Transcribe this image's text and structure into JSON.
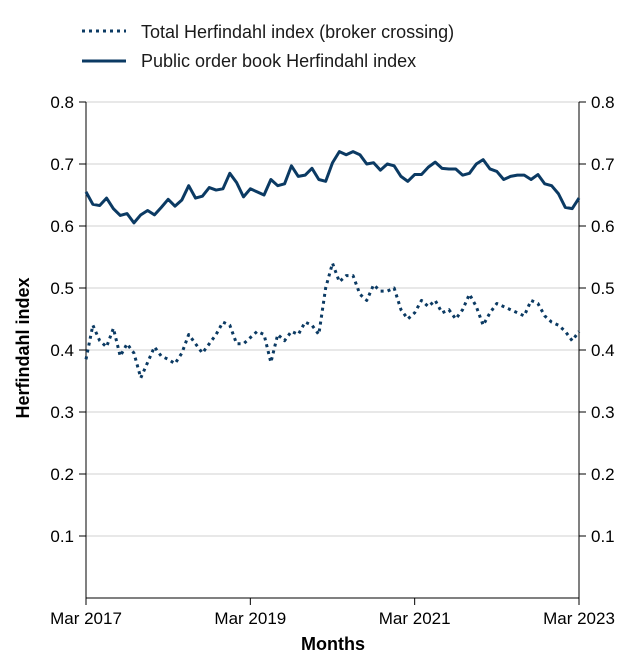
{
  "chart_data": {
    "type": "line",
    "title": "",
    "xlabel": "Months",
    "ylabel": "Herfindahl index",
    "ylim": [
      0,
      0.8
    ],
    "yticks": [
      0.1,
      0.2,
      0.3,
      0.4,
      0.5,
      0.6,
      0.7,
      0.8
    ],
    "ytick_labels": [
      "0.1",
      "0.2",
      "0.3",
      "0.4",
      "0.5",
      "0.6",
      "0.7",
      "0.8"
    ],
    "xticks": [
      "Mar 2017",
      "Mar 2019",
      "Mar 2021",
      "Mar 2023"
    ],
    "xtick_labels": [
      "Mar 2017",
      "Mar 2019",
      "Mar 2021",
      "Mar 2023"
    ],
    "x_range": [
      "Mar 2017",
      "Mar 2023"
    ],
    "grid": "horizontal",
    "legend_position": "top",
    "series": [
      {
        "name": "Total Herfindahl index (broker crossing)",
        "style": "dotted",
        "color": "#0b3a63",
        "x": [
          "2017-03",
          "2017-04",
          "2017-05",
          "2017-06",
          "2017-07",
          "2017-08",
          "2017-09",
          "2017-10",
          "2017-11",
          "2017-12",
          "2018-01",
          "2018-02",
          "2018-03",
          "2018-04",
          "2018-05",
          "2018-06",
          "2018-07",
          "2018-08",
          "2018-09",
          "2018-10",
          "2018-11",
          "2018-12",
          "2019-01",
          "2019-02",
          "2019-03",
          "2019-04",
          "2019-05",
          "2019-06",
          "2019-07",
          "2019-08",
          "2019-09",
          "2019-10",
          "2019-11",
          "2019-12",
          "2020-01",
          "2020-02",
          "2020-03",
          "2020-04",
          "2020-05",
          "2020-06",
          "2020-07",
          "2020-08",
          "2020-09",
          "2020-10",
          "2020-11",
          "2020-12",
          "2021-01",
          "2021-02",
          "2021-03",
          "2021-04",
          "2021-05",
          "2021-06",
          "2021-07",
          "2021-08",
          "2021-09",
          "2021-10",
          "2021-11",
          "2021-12",
          "2022-01",
          "2022-02",
          "2022-03",
          "2022-04",
          "2022-05",
          "2022-06",
          "2022-07",
          "2022-08",
          "2022-09",
          "2022-10",
          "2022-11",
          "2022-12",
          "2023-01",
          "2023-02",
          "2023-03"
        ],
        "values": [
          0.385,
          0.44,
          0.415,
          0.405,
          0.435,
          0.39,
          0.41,
          0.395,
          0.355,
          0.38,
          0.405,
          0.39,
          0.385,
          0.378,
          0.395,
          0.425,
          0.41,
          0.395,
          0.41,
          0.425,
          0.445,
          0.44,
          0.41,
          0.41,
          0.42,
          0.43,
          0.425,
          0.38,
          0.425,
          0.415,
          0.43,
          0.425,
          0.445,
          0.44,
          0.425,
          0.5,
          0.54,
          0.51,
          0.52,
          0.52,
          0.49,
          0.48,
          0.505,
          0.495,
          0.495,
          0.5,
          0.465,
          0.45,
          0.46,
          0.48,
          0.47,
          0.48,
          0.46,
          0.465,
          0.45,
          0.465,
          0.49,
          0.47,
          0.44,
          0.46,
          0.475,
          0.47,
          0.465,
          0.46,
          0.455,
          0.48,
          0.475,
          0.455,
          0.445,
          0.44,
          0.43,
          0.415,
          0.43
        ]
      },
      {
        "name": "Public order book Herfindahl index",
        "style": "solid",
        "color": "#0b3a63",
        "x": [
          "2017-03",
          "2017-04",
          "2017-05",
          "2017-06",
          "2017-07",
          "2017-08",
          "2017-09",
          "2017-10",
          "2017-11",
          "2017-12",
          "2018-01",
          "2018-02",
          "2018-03",
          "2018-04",
          "2018-05",
          "2018-06",
          "2018-07",
          "2018-08",
          "2018-09",
          "2018-10",
          "2018-11",
          "2018-12",
          "2019-01",
          "2019-02",
          "2019-03",
          "2019-04",
          "2019-05",
          "2019-06",
          "2019-07",
          "2019-08",
          "2019-09",
          "2019-10",
          "2019-11",
          "2019-12",
          "2020-01",
          "2020-02",
          "2020-03",
          "2020-04",
          "2020-05",
          "2020-06",
          "2020-07",
          "2020-08",
          "2020-09",
          "2020-10",
          "2020-11",
          "2020-12",
          "2021-01",
          "2021-02",
          "2021-03",
          "2021-04",
          "2021-05",
          "2021-06",
          "2021-07",
          "2021-08",
          "2021-09",
          "2021-10",
          "2021-11",
          "2021-12",
          "2022-01",
          "2022-02",
          "2022-03",
          "2022-04",
          "2022-05",
          "2022-06",
          "2022-07",
          "2022-08",
          "2022-09",
          "2022-10",
          "2022-11",
          "2022-12",
          "2023-01",
          "2023-02",
          "2023-03"
        ],
        "values": [
          0.655,
          0.635,
          0.633,
          0.645,
          0.628,
          0.617,
          0.62,
          0.605,
          0.618,
          0.625,
          0.618,
          0.63,
          0.643,
          0.632,
          0.642,
          0.665,
          0.645,
          0.648,
          0.662,
          0.658,
          0.66,
          0.685,
          0.67,
          0.647,
          0.66,
          0.655,
          0.65,
          0.675,
          0.665,
          0.668,
          0.697,
          0.68,
          0.682,
          0.693,
          0.675,
          0.672,
          0.702,
          0.72,
          0.715,
          0.72,
          0.715,
          0.7,
          0.702,
          0.69,
          0.7,
          0.697,
          0.68,
          0.672,
          0.683,
          0.683,
          0.695,
          0.703,
          0.693,
          0.692,
          0.692,
          0.682,
          0.685,
          0.7,
          0.707,
          0.692,
          0.688,
          0.675,
          0.68,
          0.682,
          0.682,
          0.675,
          0.683,
          0.668,
          0.665,
          0.652,
          0.63,
          0.628,
          0.645
        ]
      }
    ]
  }
}
